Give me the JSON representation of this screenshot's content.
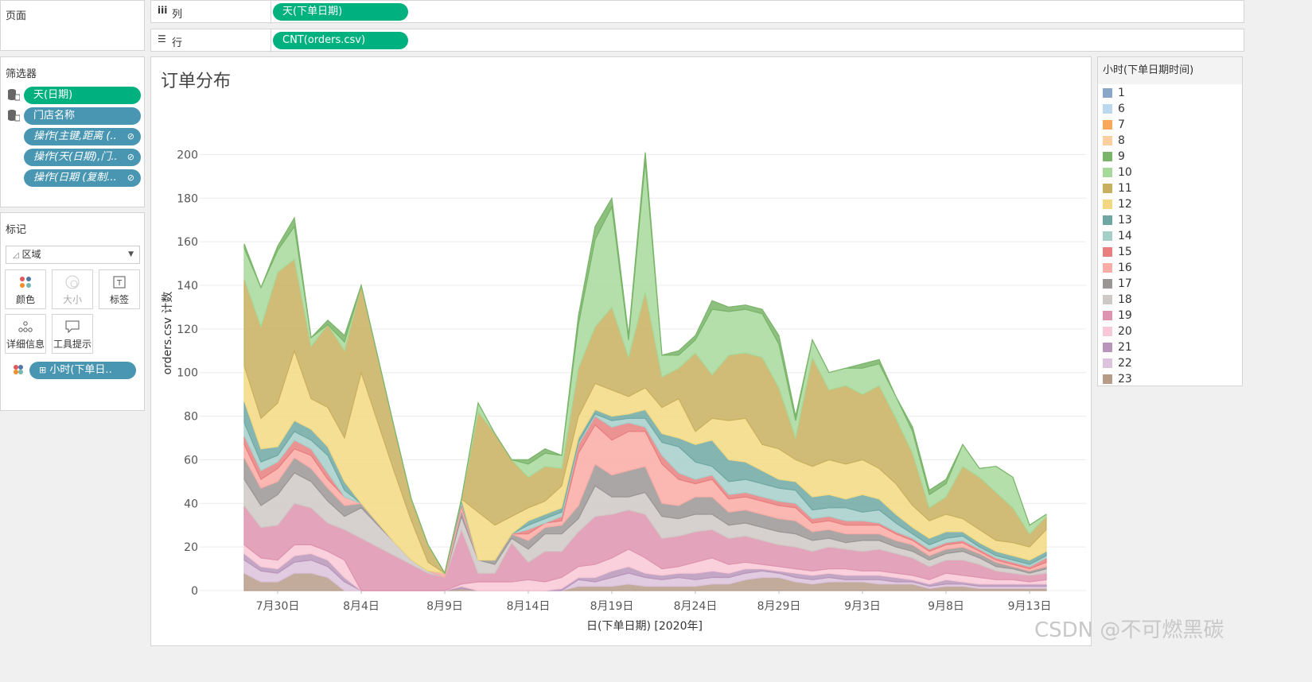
{
  "shelves": {
    "pages_label": "页面",
    "columns_label": "列",
    "rows_label": "行",
    "columns_pill": "天(下单日期)",
    "rows_pill": "CNT(orders.csv)"
  },
  "filters": {
    "title": "筛选器",
    "items": [
      "天(日期)",
      "门店名称",
      "操作(主键,距离 (..",
      "操作(天(日期),门..",
      "操作(日期 (复制..."
    ]
  },
  "marks": {
    "title": "标记",
    "type_label": "区域",
    "buttons": [
      "颜色",
      "大小",
      "标签",
      "详细信息",
      "工具提示"
    ],
    "color_pill": "小时(下单日.."
  },
  "legend": {
    "title": "小时(下单日期时间)",
    "items": [
      {
        "label": "1",
        "color": "#8aa6c8"
      },
      {
        "label": "6",
        "color": "#bcd8ee"
      },
      {
        "label": "7",
        "color": "#f7a85c"
      },
      {
        "label": "8",
        "color": "#fbcfa0"
      },
      {
        "label": "9",
        "color": "#79b469"
      },
      {
        "label": "10",
        "color": "#a7d99c"
      },
      {
        "label": "11",
        "color": "#c8b05f"
      },
      {
        "label": "12",
        "color": "#f2d981"
      },
      {
        "label": "13",
        "color": "#6fa8a3"
      },
      {
        "label": "14",
        "color": "#a7cfca"
      },
      {
        "label": "15",
        "color": "#e77f7f"
      },
      {
        "label": "16",
        "color": "#faaca6"
      },
      {
        "label": "17",
        "color": "#9b9696"
      },
      {
        "label": "18",
        "color": "#cfc9c5"
      },
      {
        "label": "19",
        "color": "#de93ae"
      },
      {
        "label": "20",
        "color": "#f8c8d6"
      },
      {
        "label": "21",
        "color": "#b895ba"
      },
      {
        "label": "22",
        "color": "#dcc2da"
      },
      {
        "label": "23",
        "color": "#b79c8a"
      }
    ]
  },
  "watermark": "CSDN @不可燃黑碳",
  "chart_data": {
    "type": "area",
    "title": "订单分布",
    "xlabel": "日(下单日期) [2020年]",
    "ylabel": "orders.csv 计数",
    "ylim": [
      0,
      210
    ],
    "yticks": [
      0,
      20,
      40,
      60,
      80,
      100,
      120,
      140,
      160,
      180,
      200
    ],
    "x_tick_labels": [
      "7月30日",
      "8月4日",
      "8月9日",
      "8月14日",
      "8月19日",
      "8月24日",
      "8月29日",
      "9月3日",
      "9月8日",
      "9月13日"
    ],
    "x_tick_day_index": [
      2,
      7,
      12,
      17,
      22,
      27,
      32,
      37,
      42,
      47
    ],
    "x_range_days": [
      0,
      48
    ],
    "stacking": "stacked",
    "series_order_bottom_to_top": [
      "23",
      "22",
      "21",
      "20",
      "19",
      "18",
      "17",
      "16",
      "15",
      "14",
      "13",
      "12",
      "11",
      "10",
      "9"
    ],
    "series": [
      {
        "name": "23",
        "values": [
          8,
          4,
          4,
          8,
          8,
          6,
          0,
          0,
          0,
          0,
          0,
          0,
          0,
          1,
          0,
          0,
          0,
          0,
          0,
          0,
          2,
          2,
          2,
          3,
          2,
          2,
          2,
          2,
          3,
          3,
          5,
          6,
          6,
          4,
          3,
          4,
          4,
          4,
          3,
          3,
          3,
          1,
          2,
          2,
          1,
          1,
          1,
          1,
          1
        ]
      },
      {
        "name": "22",
        "values": [
          6,
          5,
          4,
          5,
          6,
          5,
          4,
          0,
          0,
          0,
          0,
          0,
          0,
          0,
          0,
          0,
          0,
          0,
          0,
          0,
          3,
          2,
          4,
          5,
          4,
          3,
          4,
          3,
          3,
          3,
          3,
          3,
          2,
          2,
          2,
          2,
          1,
          1,
          2,
          1,
          1,
          1,
          1,
          1,
          1,
          1,
          1,
          1,
          1
        ]
      },
      {
        "name": "21",
        "values": [
          3,
          2,
          2,
          3,
          3,
          3,
          2,
          0,
          0,
          0,
          0,
          0,
          0,
          1,
          0,
          0,
          0,
          0,
          0,
          1,
          1,
          2,
          3,
          3,
          2,
          2,
          2,
          3,
          3,
          2,
          2,
          1,
          1,
          2,
          2,
          2,
          2,
          2,
          2,
          2,
          1,
          1,
          2,
          1,
          1,
          1,
          1,
          1,
          1
        ]
      },
      {
        "name": "20",
        "values": [
          4,
          4,
          4,
          5,
          4,
          4,
          8,
          0,
          0,
          0,
          0,
          0,
          0,
          1,
          4,
          4,
          4,
          5,
          4,
          5,
          5,
          6,
          6,
          8,
          7,
          3,
          3,
          5,
          6,
          4,
          3,
          2,
          2,
          2,
          2,
          2,
          3,
          2,
          2,
          2,
          2,
          2,
          3,
          3,
          3,
          2,
          2,
          1,
          2
        ]
      },
      {
        "name": "19",
        "values": [
          18,
          14,
          16,
          19,
          17,
          13,
          14,
          24,
          20,
          16,
          12,
          8,
          6,
          25,
          4,
          4,
          18,
          8,
          14,
          12,
          16,
          22,
          20,
          18,
          20,
          14,
          14,
          14,
          13,
          12,
          12,
          11,
          10,
          10,
          9,
          10,
          9,
          9,
          10,
          9,
          8,
          6,
          6,
          7,
          6,
          4,
          3,
          3,
          3
        ]
      },
      {
        "name": "18",
        "values": [
          12,
          10,
          14,
          14,
          12,
          10,
          6,
          14,
          10,
          6,
          2,
          1,
          0,
          6,
          6,
          4,
          2,
          6,
          8,
          8,
          6,
          14,
          8,
          6,
          10,
          10,
          8,
          8,
          7,
          6,
          6,
          6,
          6,
          6,
          5,
          4,
          3,
          5,
          4,
          3,
          3,
          3,
          3,
          4,
          3,
          2,
          2,
          1,
          2
        ]
      },
      {
        "name": "17",
        "values": [
          10,
          8,
          6,
          7,
          6,
          6,
          5,
          2,
          1,
          0,
          0,
          0,
          0,
          3,
          0,
          2,
          2,
          4,
          3,
          4,
          6,
          10,
          10,
          12,
          12,
          6,
          6,
          8,
          8,
          6,
          6,
          6,
          6,
          6,
          4,
          4,
          4,
          3,
          3,
          3,
          3,
          2,
          2,
          2,
          2,
          2,
          1,
          1,
          1
        ]
      },
      {
        "name": "16",
        "values": [
          6,
          4,
          6,
          4,
          6,
          4,
          4,
          0,
          0,
          0,
          0,
          0,
          2,
          2,
          0,
          0,
          0,
          3,
          2,
          2,
          24,
          18,
          16,
          18,
          16,
          18,
          12,
          6,
          8,
          6,
          6,
          6,
          6,
          6,
          4,
          4,
          4,
          4,
          4,
          3,
          2,
          2,
          2,
          2,
          1,
          1,
          1,
          1,
          2
        ]
      },
      {
        "name": "15",
        "values": [
          4,
          4,
          3,
          4,
          3,
          3,
          0,
          0,
          0,
          0,
          0,
          0,
          0,
          1,
          0,
          0,
          0,
          2,
          0,
          2,
          4,
          4,
          6,
          4,
          2,
          4,
          3,
          2,
          2,
          2,
          2,
          2,
          2,
          2,
          2,
          2,
          2,
          2,
          1,
          1,
          1,
          1,
          1,
          1,
          1,
          1,
          1,
          1,
          2
        ]
      },
      {
        "name": "14",
        "values": [
          6,
          4,
          3,
          4,
          4,
          8,
          3,
          0,
          0,
          0,
          0,
          0,
          0,
          1,
          0,
          0,
          0,
          2,
          2,
          2,
          1,
          1,
          3,
          2,
          4,
          6,
          12,
          8,
          4,
          6,
          6,
          6,
          6,
          6,
          4,
          4,
          6,
          4,
          6,
          4,
          2,
          2,
          2,
          2,
          1,
          1,
          1,
          1,
          1
        ]
      },
      {
        "name": "13",
        "values": [
          10,
          6,
          4,
          5,
          5,
          4,
          4,
          0,
          0,
          0,
          0,
          0,
          0,
          1,
          0,
          0,
          0,
          2,
          2,
          2,
          2,
          2,
          2,
          2,
          4,
          4,
          4,
          8,
          12,
          10,
          8,
          6,
          4,
          4,
          6,
          6,
          4,
          8,
          5,
          4,
          3,
          3,
          3,
          2,
          2,
          2,
          2,
          2,
          2
        ]
      },
      {
        "name": "12",
        "values": [
          16,
          14,
          20,
          32,
          14,
          18,
          20,
          60,
          46,
          32,
          18,
          4,
          0,
          0,
          22,
          16,
          8,
          6,
          6,
          10,
          10,
          12,
          12,
          8,
          10,
          12,
          18,
          6,
          10,
          18,
          20,
          12,
          14,
          10,
          14,
          16,
          16,
          16,
          14,
          14,
          10,
          8,
          8,
          6,
          6,
          5,
          6,
          6,
          10
        ]
      },
      {
        "name": "11",
        "values": [
          40,
          42,
          60,
          42,
          24,
          38,
          40,
          40,
          30,
          20,
          10,
          8,
          0,
          0,
          46,
          42,
          26,
          14,
          16,
          8,
          22,
          26,
          38,
          18,
          44,
          14,
          14,
          36,
          20,
          30,
          30,
          40,
          28,
          10,
          50,
          32,
          36,
          30,
          38,
          30,
          24,
          6,
          8,
          24,
          24,
          22,
          16,
          6,
          6
        ]
      },
      {
        "name": "10",
        "values": [
          14,
          18,
          10,
          15,
          4,
          0,
          4,
          0,
          0,
          0,
          0,
          0,
          0,
          0,
          4,
          0,
          0,
          6,
          6,
          6,
          20,
          40,
          46,
          8,
          60,
          10,
          6,
          6,
          30,
          20,
          20,
          20,
          20,
          8,
          8,
          8,
          8,
          12,
          10,
          10,
          10,
          6,
          6,
          10,
          4,
          12,
          14,
          4,
          1
        ]
      },
      {
        "name": "9",
        "values": [
          2,
          0,
          2,
          4,
          0,
          2,
          3,
          0,
          0,
          0,
          0,
          0,
          0,
          0,
          0,
          0,
          0,
          2,
          2,
          0,
          4,
          6,
          4,
          2,
          4,
          0,
          2,
          2,
          4,
          2,
          2,
          2,
          4,
          2,
          0,
          0,
          0,
          2,
          2,
          0,
          2,
          2,
          2,
          0,
          0,
          0,
          0,
          0,
          0
        ]
      }
    ]
  }
}
